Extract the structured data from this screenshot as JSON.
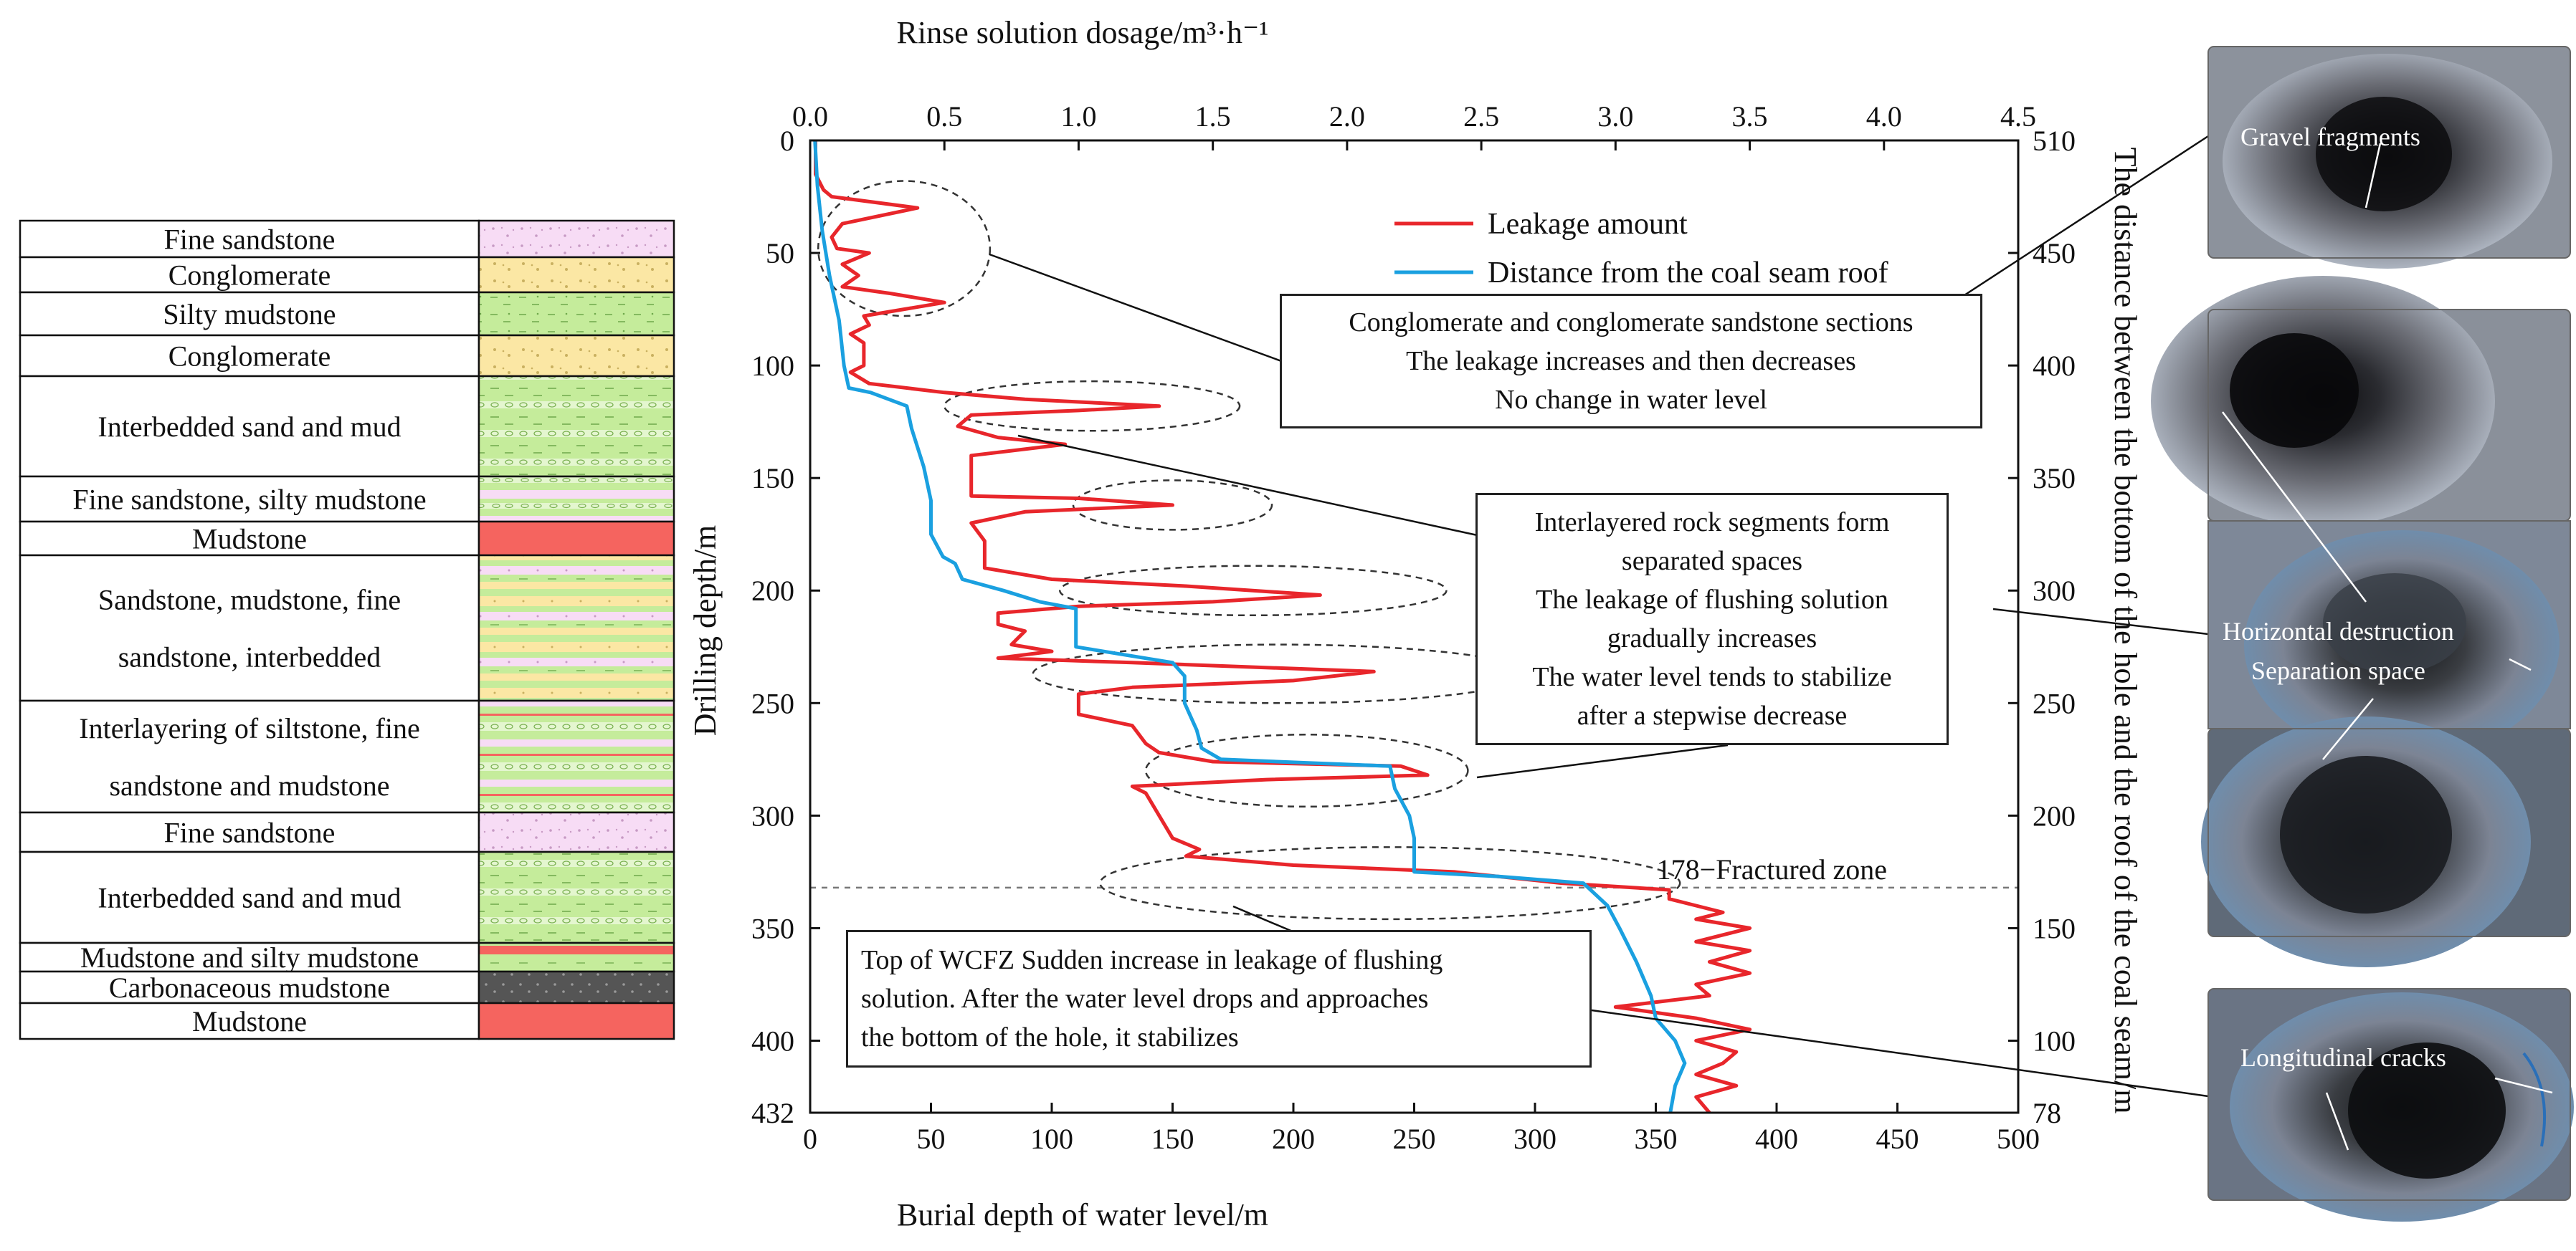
{
  "chart_data": {
    "type": "line",
    "title": "",
    "x_top_label": "Rinse solution dosage/m³·h⁻¹",
    "x_top_ticks": [
      "0.0",
      "0.5",
      "1.0",
      "1.5",
      "2.0",
      "2.5",
      "3.0",
      "3.5",
      "4.0",
      "4.5"
    ],
    "x_top_range": [
      0,
      4.5
    ],
    "x_bottom_label": "Burial depth of water level/m",
    "x_bottom_ticks": [
      "0",
      "50",
      "100",
      "150",
      "200",
      "250",
      "300",
      "350",
      "400",
      "450",
      "500"
    ],
    "x_bottom_range": [
      0,
      500
    ],
    "y_left_label": "Drilling depth/m",
    "y_left_ticks": [
      "0",
      "50",
      "100",
      "150",
      "200",
      "250",
      "300",
      "350",
      "400",
      "432"
    ],
    "y_left_range": [
      0,
      432
    ],
    "y_right_label": "The distance between the bottom of the hole and the roof of the coal seam/m",
    "y_right_ticks": [
      "510",
      "450",
      "400",
      "350",
      "300",
      "250",
      "200",
      "150",
      "100",
      "78"
    ],
    "legend_position": "top-right",
    "series": [
      {
        "name": "Leakage amount",
        "color": "#e8262b",
        "axis": "top",
        "points": [
          [
            0.02,
            0
          ],
          [
            0.02,
            15
          ],
          [
            0.05,
            22
          ],
          [
            0.08,
            25
          ],
          [
            0.4,
            30
          ],
          [
            0.12,
            37
          ],
          [
            0.08,
            43
          ],
          [
            0.1,
            48
          ],
          [
            0.22,
            50
          ],
          [
            0.12,
            55
          ],
          [
            0.18,
            60
          ],
          [
            0.12,
            65
          ],
          [
            0.3,
            68
          ],
          [
            0.5,
            72
          ],
          [
            0.2,
            78
          ],
          [
            0.22,
            82
          ],
          [
            0.15,
            86
          ],
          [
            0.2,
            90
          ],
          [
            0.2,
            100
          ],
          [
            0.15,
            103
          ],
          [
            0.22,
            108
          ],
          [
            0.5,
            112
          ],
          [
            0.8,
            115
          ],
          [
            1.3,
            118
          ],
          [
            1.0,
            120
          ],
          [
            0.6,
            122
          ],
          [
            0.55,
            127
          ],
          [
            0.7,
            132
          ],
          [
            0.95,
            135
          ],
          [
            0.6,
            140
          ],
          [
            0.6,
            158
          ],
          [
            1.0,
            159
          ],
          [
            1.35,
            162
          ],
          [
            0.8,
            165
          ],
          [
            0.6,
            170
          ],
          [
            0.65,
            178
          ],
          [
            0.65,
            190
          ],
          [
            0.9,
            195
          ],
          [
            1.4,
            198
          ],
          [
            1.9,
            202
          ],
          [
            1.5,
            205
          ],
          [
            1.0,
            207
          ],
          [
            0.7,
            210
          ],
          [
            0.7,
            215
          ],
          [
            0.8,
            218
          ],
          [
            0.75,
            224
          ],
          [
            0.9,
            227
          ],
          [
            0.7,
            230
          ],
          [
            1.2,
            232
          ],
          [
            2.1,
            236
          ],
          [
            1.8,
            240
          ],
          [
            1.2,
            243
          ],
          [
            1.0,
            246
          ],
          [
            1.0,
            255
          ],
          [
            1.2,
            260
          ],
          [
            1.25,
            268
          ],
          [
            1.3,
            272
          ],
          [
            1.5,
            276
          ],
          [
            2.2,
            278
          ],
          [
            2.3,
            282
          ],
          [
            1.7,
            284
          ],
          [
            1.2,
            287
          ],
          [
            1.25,
            290
          ],
          [
            1.3,
            300
          ],
          [
            1.35,
            310
          ],
          [
            1.45,
            315
          ],
          [
            1.4,
            318
          ],
          [
            1.8,
            322
          ],
          [
            2.4,
            325
          ],
          [
            2.8,
            330
          ],
          [
            3.2,
            333
          ],
          [
            3.2,
            337
          ],
          [
            3.3,
            340
          ],
          [
            3.4,
            343
          ],
          [
            3.3,
            346
          ],
          [
            3.5,
            350
          ],
          [
            3.3,
            356
          ],
          [
            3.5,
            360
          ],
          [
            3.35,
            365
          ],
          [
            3.5,
            370
          ],
          [
            3.3,
            375
          ],
          [
            3.35,
            380
          ],
          [
            3.0,
            385
          ],
          [
            3.3,
            390
          ],
          [
            3.5,
            395
          ],
          [
            3.3,
            400
          ],
          [
            3.45,
            405
          ],
          [
            3.4,
            410
          ],
          [
            3.3,
            415
          ],
          [
            3.45,
            420
          ],
          [
            3.3,
            425
          ],
          [
            3.35,
            432
          ]
        ]
      },
      {
        "name": "Distance from the coal seam roof",
        "color": "#1aa0e0",
        "axis": "bottom",
        "points": [
          [
            2,
            0
          ],
          [
            3,
            20
          ],
          [
            5,
            40
          ],
          [
            8,
            60
          ],
          [
            12,
            80
          ],
          [
            14,
            100
          ],
          [
            16,
            110
          ],
          [
            25,
            112
          ],
          [
            40,
            118
          ],
          [
            42,
            128
          ],
          [
            47,
            145
          ],
          [
            50,
            160
          ],
          [
            50,
            175
          ],
          [
            55,
            185
          ],
          [
            60,
            188
          ],
          [
            63,
            195
          ],
          [
            80,
            200
          ],
          [
            95,
            205
          ],
          [
            110,
            208
          ],
          [
            110,
            225
          ],
          [
            150,
            232
          ],
          [
            155,
            238
          ],
          [
            155,
            250
          ],
          [
            160,
            262
          ],
          [
            162,
            270
          ],
          [
            170,
            275
          ],
          [
            240,
            278
          ],
          [
            242,
            288
          ],
          [
            248,
            300
          ],
          [
            250,
            310
          ],
          [
            250,
            325
          ],
          [
            285,
            327
          ],
          [
            320,
            330
          ],
          [
            330,
            340
          ],
          [
            335,
            350
          ],
          [
            342,
            365
          ],
          [
            348,
            380
          ],
          [
            350,
            390
          ],
          [
            358,
            400
          ],
          [
            362,
            410
          ],
          [
            358,
            420
          ],
          [
            356,
            432
          ]
        ]
      }
    ],
    "reference_line": {
      "y": 332,
      "label": "178−Fractured zone"
    }
  },
  "strata": [
    {
      "label": "Fine sandstone",
      "pattern": "fine-sandstone"
    },
    {
      "label": "Conglomerate",
      "pattern": "conglomerate"
    },
    {
      "label": "Silty mudstone",
      "pattern": "silty-mudstone"
    },
    {
      "label": "Conglomerate",
      "pattern": "conglomerate"
    },
    {
      "label": "Interbedded sand and mud",
      "pattern": "interbedded"
    },
    {
      "label": "Fine sandstone, silty mudstone",
      "pattern": "mixed-fine"
    },
    {
      "label": "Mudstone",
      "pattern": "mudstone"
    },
    {
      "label": "Sandstone, mudstone, fine sandstone, interbedded",
      "pattern": "sandstone-mix",
      "lines": [
        "Sandstone, mudstone, fine",
        "sandstone, interbedded"
      ]
    },
    {
      "label": "Interlayering of siltstone, fine sandstone and mudstone",
      "pattern": "siltstone-mix",
      "lines": [
        "Interlayering of siltstone, fine",
        "sandstone and mudstone"
      ]
    },
    {
      "label": "Fine sandstone",
      "pattern": "fine-sandstone"
    },
    {
      "label": "Interbedded sand and mud",
      "pattern": "interbedded"
    },
    {
      "label": "Mudstone and silty mudstone",
      "pattern": "mud-silty"
    },
    {
      "label": "Carbonaceous mudstone",
      "pattern": "carbonaceous"
    },
    {
      "label": "Mudstone",
      "pattern": "mudstone"
    }
  ],
  "annotations": {
    "conglomerate": [
      "Conglomerate and conglomerate sandstone sections",
      "The leakage increases and then decreases",
      "No change in water level"
    ],
    "interlayered": [
      "Interlayered rock segments form",
      "separated spaces",
      "The leakage of flushing solution",
      "gradually increases",
      "The water level tends to stabilize",
      "after a stepwise decrease"
    ],
    "wcfz": [
      "Top of WCFZ Sudden increase in leakage of flushing",
      "solution. After the water level drops and approaches",
      "the bottom of the hole, it stabilizes"
    ]
  },
  "photos": {
    "gravel": "Gravel fragments",
    "horizontal": "Horizontal destruction",
    "separation": "Separation space",
    "longitudinal": "Longitudinal cracks"
  }
}
